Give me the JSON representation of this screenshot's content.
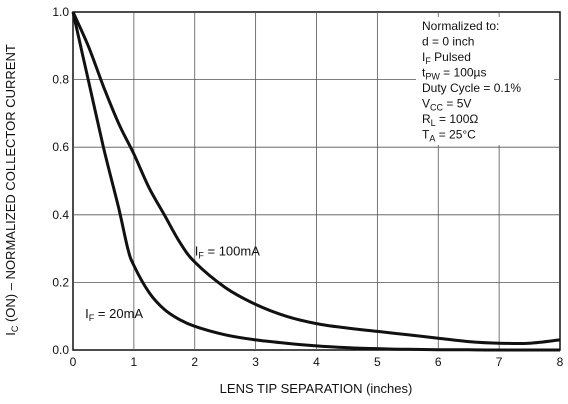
{
  "chart_data": {
    "type": "line",
    "xlabel": "LENS TIP SEPARATION (inches)",
    "ylabel": "I_C (ON) – NORMALIZED COLLECTOR CURRENT",
    "xlim": [
      0,
      8
    ],
    "ylim": [
      0,
      1.0
    ],
    "x_ticks": [
      "0",
      "1",
      "2",
      "3",
      "4",
      "5",
      "6",
      "7",
      "8"
    ],
    "y_ticks": [
      "0.0",
      "0.2",
      "0.4",
      "0.6",
      "0.8",
      "1.0"
    ],
    "grid": true,
    "series": [
      {
        "name": "I_F = 100mA",
        "x": [
          0,
          0.25,
          0.5,
          0.75,
          1.0,
          1.25,
          1.5,
          1.75,
          2.0,
          2.5,
          3.0,
          3.5,
          4.0,
          4.5,
          5.0,
          5.5,
          6.0,
          6.5,
          7.0,
          7.5,
          8.0
        ],
        "y": [
          1.0,
          0.9,
          0.78,
          0.67,
          0.58,
          0.48,
          0.4,
          0.32,
          0.26,
          0.185,
          0.135,
          0.1,
          0.078,
          0.065,
          0.055,
          0.045,
          0.035,
          0.025,
          0.02,
          0.02,
          0.03
        ]
      },
      {
        "name": "I_F = 20mA",
        "x": [
          0,
          0.25,
          0.5,
          0.75,
          0.9,
          1.0,
          1.25,
          1.5,
          1.75,
          2.0,
          2.5,
          3.0,
          3.5,
          4.0,
          4.5,
          5.0,
          5.5,
          6.0,
          6.5,
          7.0,
          8.0
        ],
        "y": [
          1.0,
          0.8,
          0.6,
          0.42,
          0.3,
          0.25,
          0.17,
          0.12,
          0.09,
          0.07,
          0.045,
          0.03,
          0.02,
          0.012,
          0.007,
          0.004,
          0.002,
          0.001,
          0.0005,
          0.0,
          0.0
        ]
      }
    ],
    "series_labels": [
      {
        "main": "I",
        "sub": "F",
        "rest": " = 100mA",
        "x": 2.0,
        "y": 0.28
      },
      {
        "main": "I",
        "sub": "F",
        "rest": " = 20mA",
        "x": 0.2,
        "y": 0.095
      }
    ],
    "annotation": [
      {
        "main": "Normalized to:",
        "sub": "",
        "rest": ""
      },
      {
        "main": "d = 0 inch",
        "sub": "",
        "rest": ""
      },
      {
        "main": "I",
        "sub": "F",
        "rest": " Pulsed"
      },
      {
        "main": "t",
        "sub": "PW",
        "rest": " = 100µs"
      },
      {
        "main": "Duty Cycle = 0.1%",
        "sub": "",
        "rest": ""
      },
      {
        "main": "V",
        "sub": "CC",
        "rest": " = 5V"
      },
      {
        "main": "R",
        "sub": "L",
        "rest": " = 100Ω"
      },
      {
        "main": "T",
        "sub": "A",
        "rest": " = 25°C"
      }
    ],
    "ylabel_parts": {
      "main": "I",
      "sub": "C",
      "rest": " (ON) – NORMALIZED COLLECTOR CURRENT"
    },
    "colors": {
      "line": "#111111",
      "grid": "#555555",
      "background": "#ffffff"
    }
  }
}
